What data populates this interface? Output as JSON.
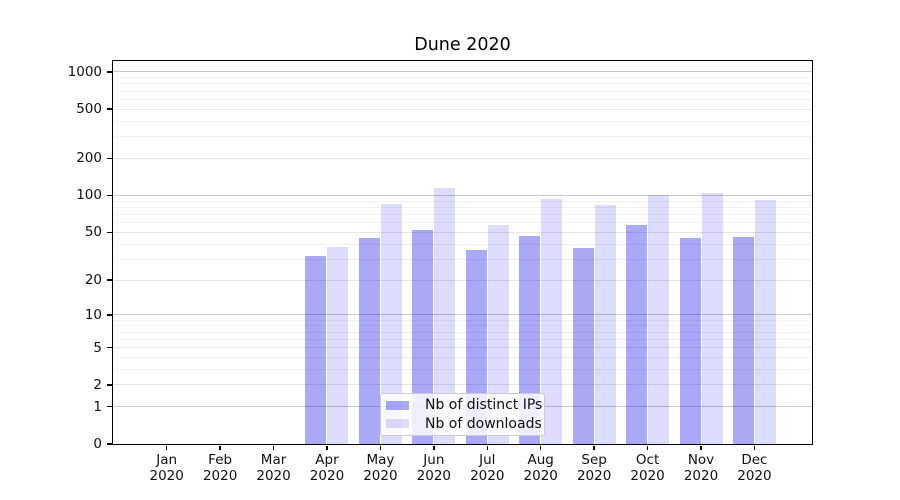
{
  "chart_data": {
    "type": "bar",
    "title": "Dune 2020",
    "categories": [
      "Jan 2020",
      "Feb 2020",
      "Mar 2020",
      "Apr 2020",
      "May 2020",
      "Jun 2020",
      "Jul 2020",
      "Aug 2020",
      "Sep 2020",
      "Oct 2020",
      "Nov 2020",
      "Dec 2020"
    ],
    "series": [
      {
        "name": "Nb of distinct IPs",
        "color": "#0a0aeb",
        "opacity": 0.35,
        "values": [
          0,
          0,
          0,
          32,
          45,
          52,
          36,
          47,
          37,
          57,
          45,
          46
        ]
      },
      {
        "name": "Nb of downloads",
        "color": "#0a0aeb",
        "opacity": 0.14,
        "values": [
          0,
          0,
          0,
          38,
          85,
          115,
          57,
          94,
          84,
          100,
          104,
          92
        ]
      }
    ],
    "yscale": "log1p",
    "ylim": [
      0,
      1250
    ],
    "yticks": [
      0,
      1,
      2,
      5,
      10,
      20,
      50,
      100,
      200,
      500,
      1000
    ],
    "grid": true,
    "legend_position": "inside-bottom-center"
  },
  "colors": {
    "grid_major": "#c9c9c9",
    "grid_mid": "#e5e5e5",
    "grid_minor": "#f2f2f2",
    "axis": "#000000",
    "text": "#111111",
    "legend_border": "#cccccc",
    "legend_bg": "#ffffff"
  }
}
